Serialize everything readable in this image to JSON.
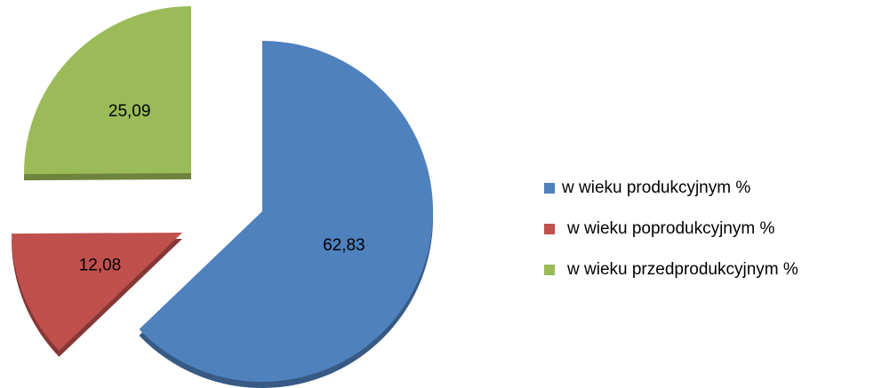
{
  "chart_data": {
    "type": "pie",
    "categories": [
      "w wieku produkcyjnym %",
      "w wieku poprodukcyjnym %",
      "w wieku przedprodukcyjnym %"
    ],
    "values": [
      62.83,
      12.08,
      25.09
    ],
    "value_labels": [
      "62,83",
      "12,08",
      "25,09"
    ],
    "colors": [
      "#4f81bd",
      "#c0504d",
      "#9bbb59"
    ],
    "legend": "right"
  }
}
